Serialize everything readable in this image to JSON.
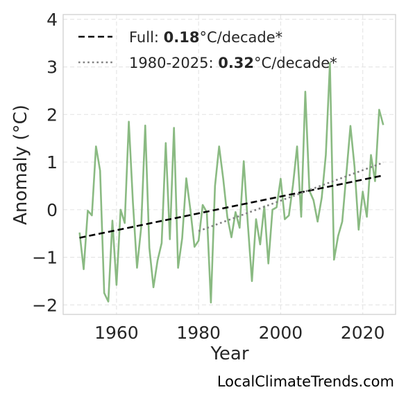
{
  "chart_data": {
    "type": "line",
    "xlabel": "Year",
    "ylabel": "Anomaly (°C)",
    "xlim": [
      1947,
      2028
    ],
    "ylim": [
      -2.2,
      4.1
    ],
    "xticks": [
      1960,
      1980,
      2000,
      2020
    ],
    "xtick_labels": [
      "1960",
      "1980",
      "2000",
      "2020"
    ],
    "yticks": [
      -2,
      -1,
      0,
      1,
      2,
      3,
      4
    ],
    "ytick_labels": [
      "−2",
      "−1",
      "0",
      "1",
      "2",
      "3",
      "4"
    ],
    "grid": true,
    "legend_position": "top-left",
    "series": [
      {
        "color": "#8aba82",
        "style": "solid",
        "x": [
          1951,
          1952,
          1953,
          1954,
          1955,
          1956,
          1957,
          1958,
          1959,
          1960,
          1961,
          1962,
          1963,
          1964,
          1965,
          1966,
          1967,
          1968,
          1969,
          1970,
          1971,
          1972,
          1973,
          1974,
          1975,
          1976,
          1977,
          1978,
          1979,
          1980,
          1981,
          1982,
          1983,
          1984,
          1985,
          1986,
          1987,
          1988,
          1989,
          1990,
          1991,
          1992,
          1993,
          1994,
          1995,
          1996,
          1997,
          1998,
          1999,
          2000,
          2001,
          2002,
          2003,
          2004,
          2005,
          2006,
          2007,
          2008,
          2009,
          2010,
          2011,
          2012,
          2013,
          2014,
          2015,
          2016,
          2017,
          2018,
          2019,
          2020,
          2021,
          2022,
          2023,
          2024,
          2025
        ],
        "values": [
          -0.48,
          -1.25,
          -0.02,
          -0.12,
          1.33,
          0.82,
          -1.75,
          -1.93,
          -0.23,
          -1.58,
          0.0,
          -0.28,
          1.85,
          0.15,
          -1.22,
          -0.38,
          1.77,
          -0.8,
          -1.63,
          -1.07,
          -0.7,
          1.4,
          -0.62,
          1.72,
          -1.22,
          -0.6,
          0.66,
          0.0,
          -0.78,
          -0.65,
          0.1,
          -0.05,
          -1.95,
          0.5,
          1.33,
          0.65,
          -0.15,
          -0.58,
          -0.05,
          -0.38,
          1.02,
          -0.3,
          -1.5,
          -0.2,
          -0.73,
          0.07,
          -1.13,
          0.0,
          0.05,
          0.65,
          -0.2,
          -0.12,
          0.52,
          1.33,
          -0.15,
          2.48,
          0.4,
          0.2,
          -0.25,
          0.25,
          1.15,
          3.08,
          -1.05,
          -0.55,
          -0.25,
          0.75,
          1.76,
          0.9,
          -0.42,
          0.38,
          -0.15,
          1.15,
          0.6,
          2.1,
          1.78
        ]
      },
      {
        "color": "#000000",
        "style": "dashed",
        "x": [
          1951,
          2025
        ],
        "values": [
          -0.59,
          0.72
        ]
      },
      {
        "color": "#808080",
        "style": "dotted",
        "x": [
          1980,
          2025
        ],
        "values": [
          -0.45,
          0.99
        ]
      }
    ],
    "legend": [
      {
        "prefix": "Full: ",
        "bold": "0.18",
        "suffix": "°C/decade*"
      },
      {
        "prefix": "1980-2025: ",
        "bold": "0.32",
        "suffix": "°C/decade*"
      }
    ],
    "watermark": "LocalClimateTrends.com"
  }
}
